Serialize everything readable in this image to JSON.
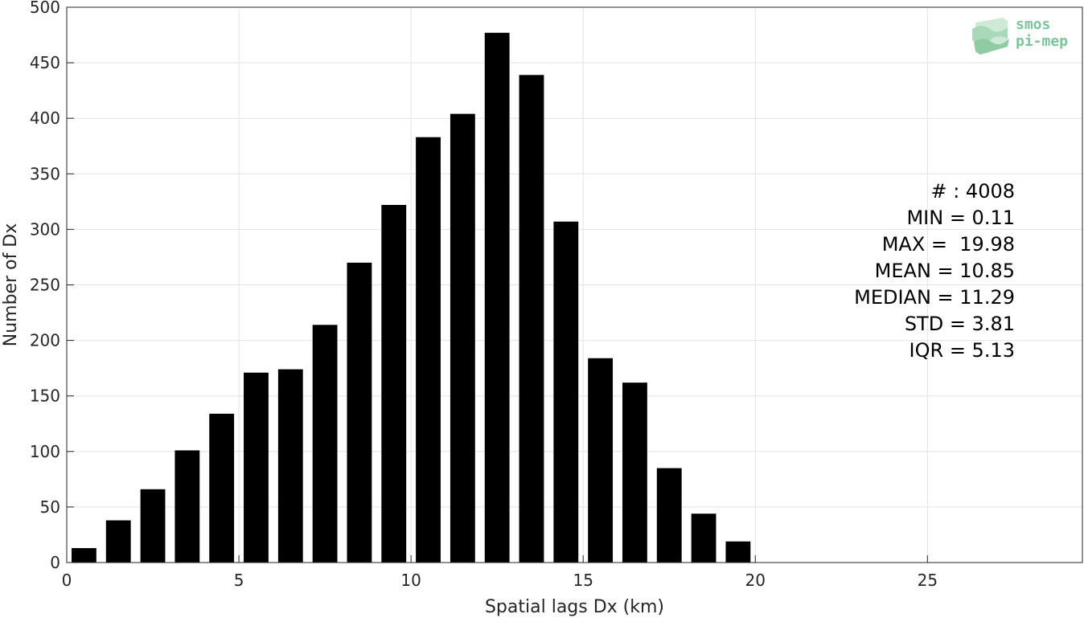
{
  "chart_data": {
    "type": "bar",
    "x": [
      0.5,
      1.5,
      2.5,
      3.5,
      4.5,
      5.5,
      6.5,
      7.5,
      8.5,
      9.5,
      10.5,
      11.5,
      12.5,
      13.5,
      14.5,
      15.5,
      16.5,
      17.5,
      18.5,
      19.5
    ],
    "values": [
      13,
      38,
      66,
      101,
      134,
      171,
      174,
      214,
      270,
      322,
      383,
      404,
      477,
      439,
      307,
      184,
      162,
      85,
      44,
      19
    ],
    "xlabel": "Spatial lags Dx (km)",
    "ylabel": "Number of Dx",
    "xlim": [
      0,
      29.5
    ],
    "ylim": [
      0,
      500
    ],
    "xticks": [
      0,
      5,
      10,
      15,
      20,
      25
    ],
    "yticks": [
      0,
      50,
      100,
      150,
      200,
      250,
      300,
      350,
      400,
      450,
      500
    ],
    "grid": true,
    "bar_color": "#000000"
  },
  "stats": {
    "count": "# : 4008",
    "min": "MIN = 0.11",
    "max": "MAX =  19.98",
    "mean": "MEAN = 10.85",
    "median": "MEDIAN = 11.29",
    "std": "STD = 3.81",
    "iqr": "IQR = 5.13"
  },
  "logo": {
    "line1": "smos",
    "line2": "pi-mep",
    "color": "#7cc49a"
  }
}
